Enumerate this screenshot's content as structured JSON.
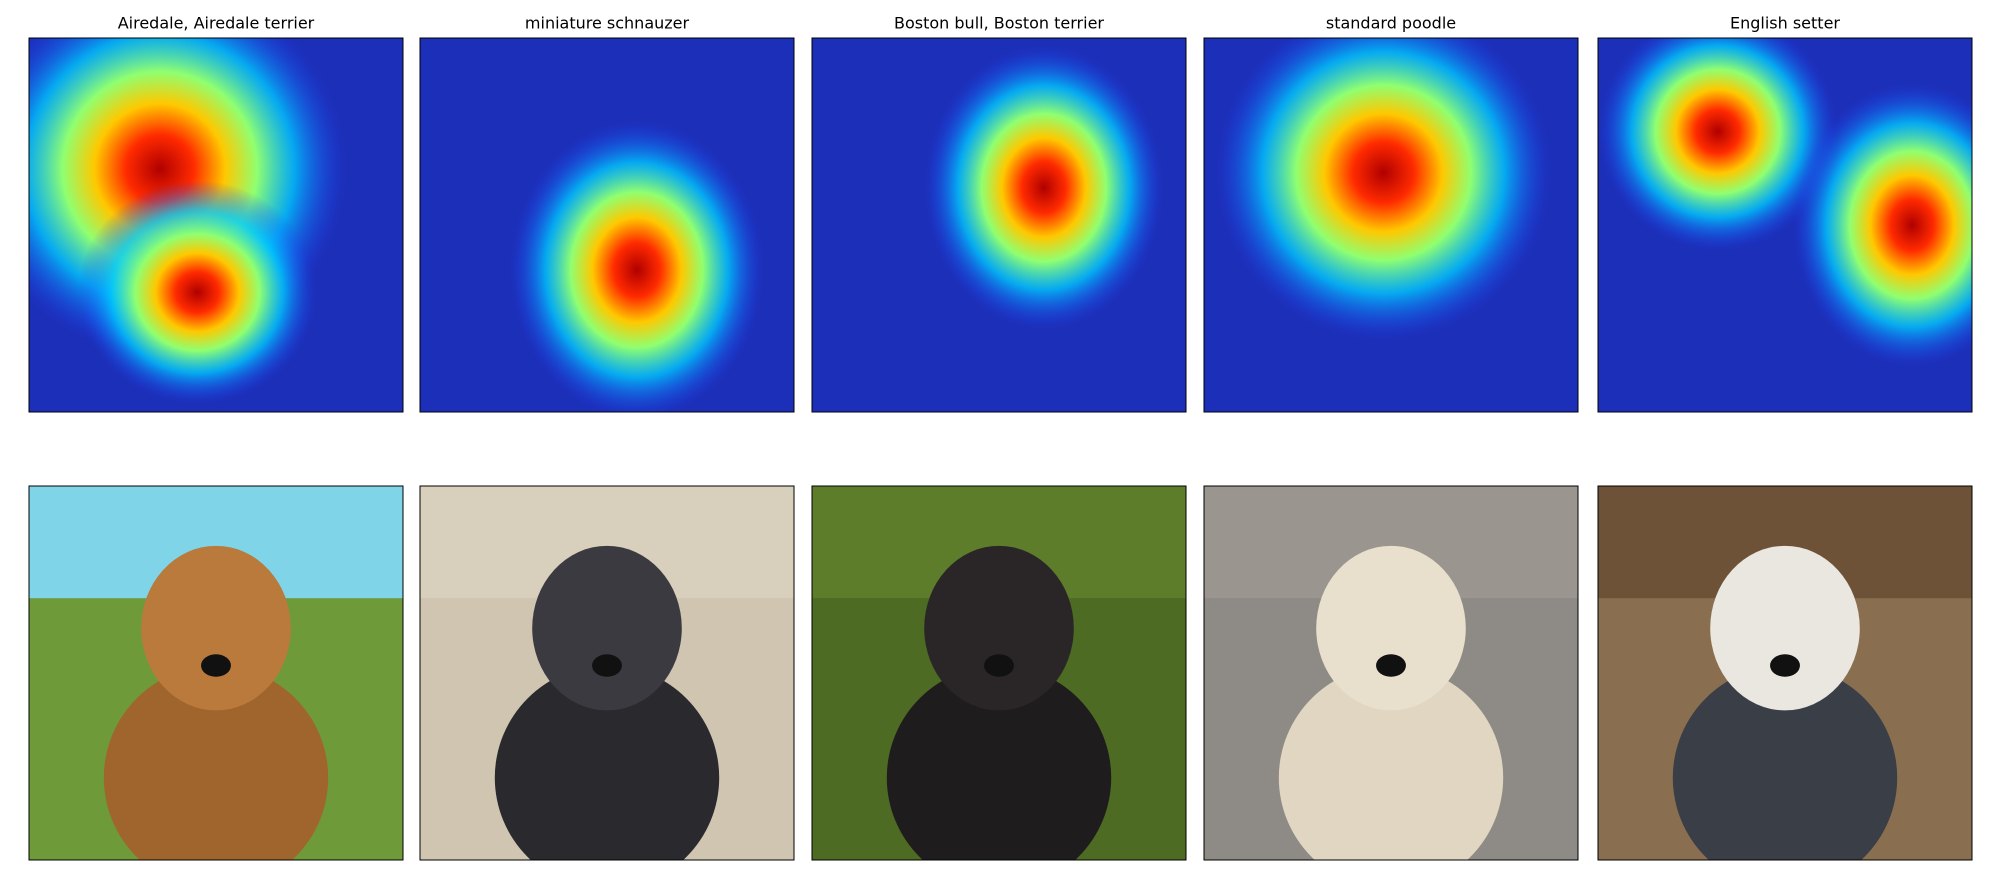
{
  "panels": [
    {
      "title": "Airedale, Airedale terrier"
    },
    {
      "title": "miniature schnauzer"
    },
    {
      "title": "Boston bull, Boston terrier"
    },
    {
      "title": "standard poodle"
    },
    {
      "title": "English setter"
    }
  ]
}
